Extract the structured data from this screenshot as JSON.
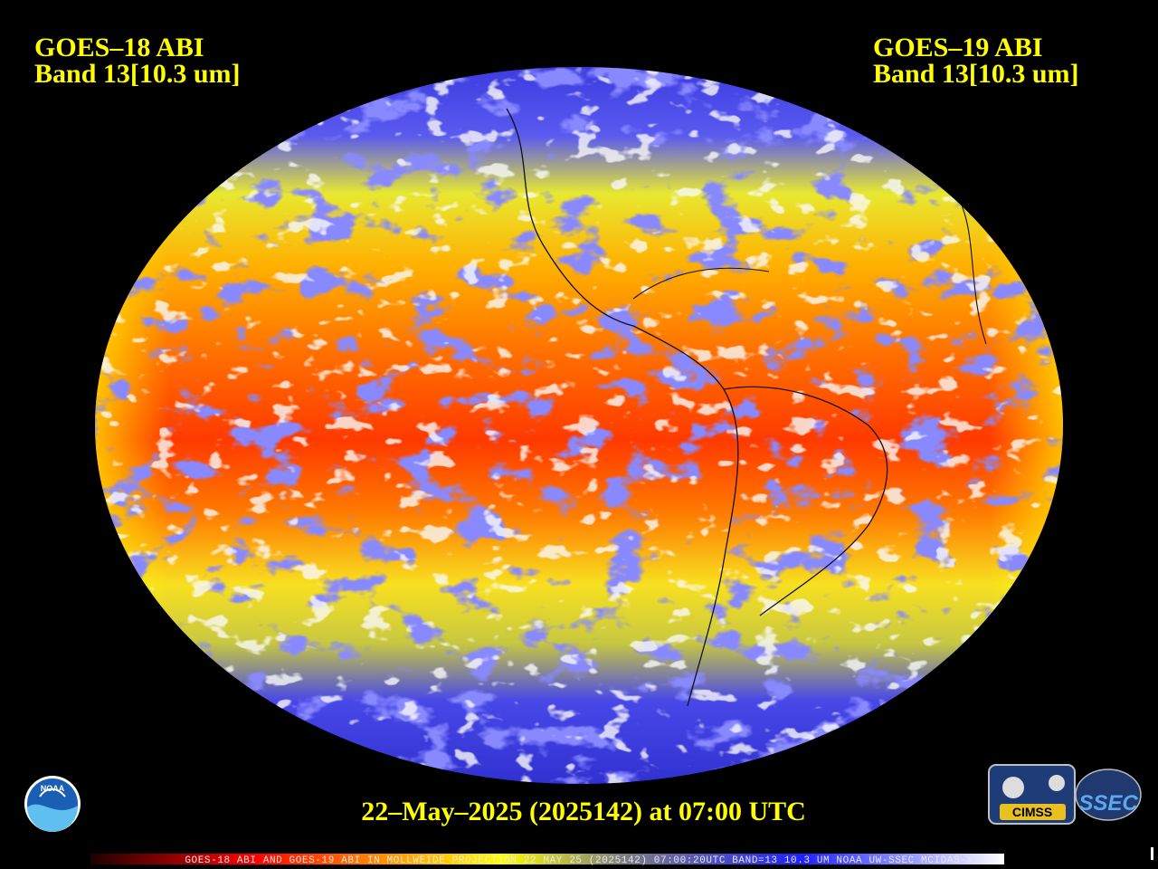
{
  "left_label": {
    "satellite": "GOES–18 ABI",
    "band": "Band 13[10.3 um]"
  },
  "right_label": {
    "satellite": "GOES–19 ABI",
    "band": "Band 13[10.3 um]"
  },
  "timestamp": "22–May–2025 (2025142) at 07:00 UTC",
  "footer": "GOES-18 ABI AND GOES-19 ABI IN MOLLWEIDE PROJECTION 22 MAY 25 (2025142) 07:00:20UTC BAND=13 10.3 UM NOAA UW-SSEC MCIDAS-X",
  "logos": {
    "noaa": "NOAA",
    "cimss": "CIMSS",
    "ssec": "SSEC"
  }
}
